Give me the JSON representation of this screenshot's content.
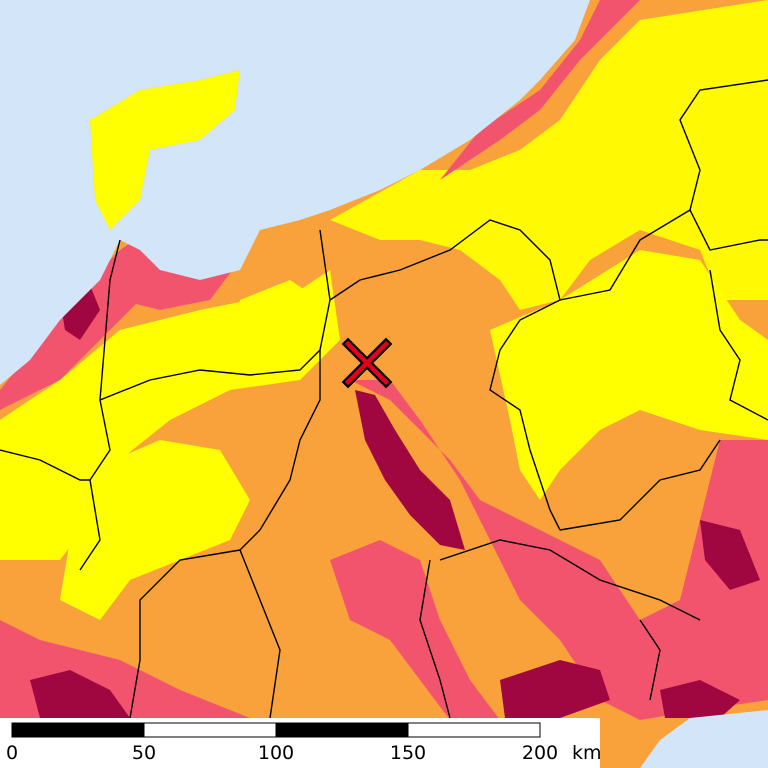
{
  "scale_bar": {
    "ticks": [
      0,
      50,
      100,
      150,
      200
    ],
    "unit": "km"
  }
}
